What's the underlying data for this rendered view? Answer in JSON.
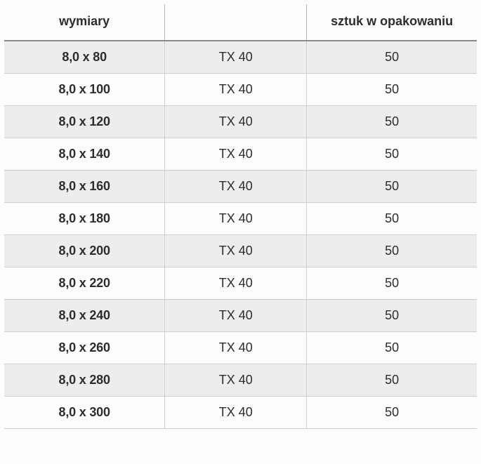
{
  "table": {
    "columns": [
      "wymiary",
      "",
      "sztuk w opakowaniu"
    ],
    "rows": [
      [
        "8,0 x 80",
        "TX 40",
        "50"
      ],
      [
        "8,0 x 100",
        "TX 40",
        "50"
      ],
      [
        "8,0 x 120",
        "TX 40",
        "50"
      ],
      [
        "8,0 x 140",
        "TX 40",
        "50"
      ],
      [
        "8,0 x 160",
        "TX 40",
        "50"
      ],
      [
        "8,0 x 180",
        "TX 40",
        "50"
      ],
      [
        "8,0 x 200",
        "TX 40",
        "50"
      ],
      [
        "8,0 x 220",
        "TX 40",
        "50"
      ],
      [
        "8,0 x 240",
        "TX 40",
        "50"
      ],
      [
        "8,0 x 260",
        "TX 40",
        "50"
      ],
      [
        "8,0 x 280",
        "TX 40",
        "50"
      ],
      [
        "8,0 x 300",
        "TX 40",
        "50"
      ]
    ],
    "header_bg": "#fdfdfc",
    "row_shaded_bg": "#eceded",
    "row_plain_bg": "#fdfdfc",
    "border_color": "#cfcfcf",
    "header_border_color": "#8a8a8a",
    "font_size": 18,
    "col_widths_pct": [
      34,
      30,
      36
    ]
  }
}
